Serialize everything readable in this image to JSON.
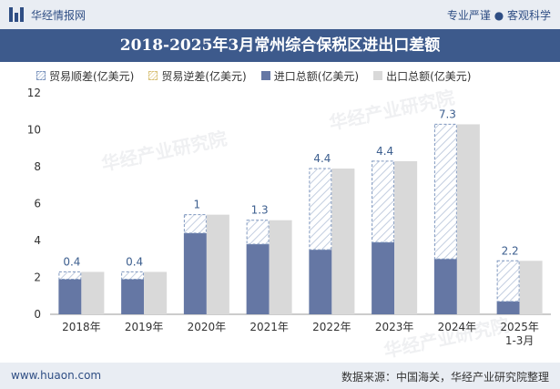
{
  "header": {
    "brand": "华经情报网",
    "slogan": "专业严谨 ● 客观科学"
  },
  "title": "2018-2025年3月常州综合保税区进出口差额",
  "footer": {
    "url": "www.huaon.com",
    "source": "数据来源：中国海关，华经产业研究院整理"
  },
  "watermark": "华经产业研究院",
  "colors": {
    "surplus": "#7f97bf",
    "deficit": "#d8c27a",
    "import": "#6577a4",
    "export": "#d9d9d9",
    "label": "#3d5f8f"
  },
  "chart_data": {
    "type": "bar",
    "categories": [
      "2018年",
      "2019年",
      "2020年",
      "2021年",
      "2022年",
      "2023年",
      "2024年",
      "2025年\n1-3月"
    ],
    "ylim": [
      0,
      12
    ],
    "yticks": [
      0,
      2,
      4,
      6,
      8,
      10,
      12
    ],
    "legend_position": "top",
    "series": [
      {
        "name": "贸易顺差(亿美元)",
        "values": [
          0.4,
          0.4,
          1,
          1.3,
          4.4,
          4.4,
          7.3,
          2.2
        ]
      },
      {
        "name": "贸易逆差(亿美元)",
        "values": [
          0,
          0,
          0,
          0,
          0,
          0,
          0,
          0
        ]
      },
      {
        "name": "进口总额(亿美元)",
        "values": [
          1.9,
          1.9,
          4.4,
          3.8,
          3.5,
          3.9,
          3.0,
          0.7
        ]
      },
      {
        "name": "出口总额(亿美元)",
        "values": [
          2.3,
          2.3,
          5.4,
          5.1,
          7.9,
          8.3,
          10.3,
          2.9
        ]
      }
    ],
    "data_labels": [
      "0.4",
      "0.4",
      "1",
      "1.3",
      "4.4",
      "4.4",
      "7.3",
      "2.2"
    ]
  }
}
